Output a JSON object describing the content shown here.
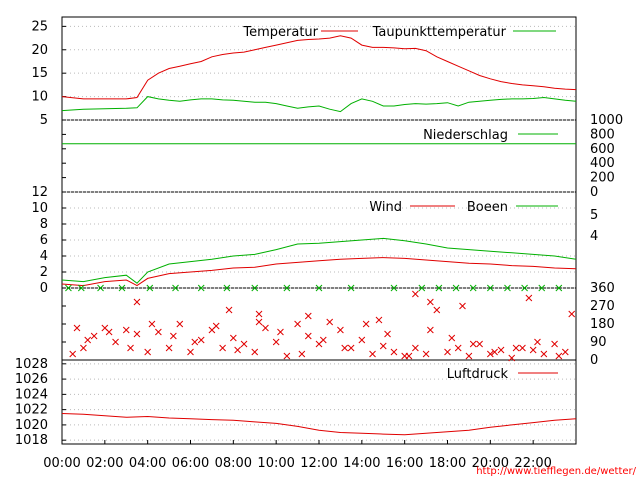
{
  "credit": "http://www.tiefflegen.de/wetter/",
  "x_ticks": [
    "00:00",
    "02:00",
    "04:00",
    "06:00",
    "08:00",
    "10:00",
    "12:00",
    "14:00",
    "16:00",
    "18:00",
    "20:00",
    "22:00"
  ],
  "colors": {
    "red": "#e00000",
    "green": "#00b000",
    "grid": "#bbbbbb"
  },
  "chart_data": [
    {
      "id": "temp",
      "type": "line",
      "ylim": [
        5,
        27
      ],
      "y_ticks": [
        5,
        10,
        15,
        20,
        25
      ],
      "grid": true,
      "series": [
        {
          "name": "Temperatur",
          "color": "#e00000",
          "x": [
            0,
            1,
            2,
            3,
            3.5,
            4,
            4.5,
            5,
            5.5,
            6,
            6.5,
            7,
            7.5,
            8,
            8.5,
            9,
            9.5,
            10,
            10.5,
            11,
            11.5,
            12,
            12.5,
            13,
            13.5,
            14,
            14.5,
            15,
            15.5,
            16,
            16.5,
            17,
            17.5,
            18,
            18.5,
            19,
            19.5,
            20,
            20.5,
            21,
            21.5,
            22,
            22.5,
            23,
            23.5,
            24
          ],
          "y": [
            10,
            9.5,
            9.5,
            9.5,
            9.8,
            13.5,
            15,
            16,
            16.5,
            17,
            17.5,
            18.5,
            19,
            19.3,
            19.5,
            20,
            20.5,
            21,
            21.5,
            22,
            22.2,
            22.3,
            22.5,
            23,
            22.5,
            21,
            20.5,
            20.5,
            20.4,
            20.2,
            20.3,
            19.8,
            18.5,
            17.5,
            16.5,
            15.5,
            14.5,
            13.8,
            13.2,
            12.8,
            12.5,
            12.3,
            12.1,
            11.8,
            11.6,
            11.5
          ]
        },
        {
          "name": "Taupunkttemperatur",
          "color": "#00b000",
          "x": [
            0,
            1,
            2,
            3,
            3.5,
            4,
            4.5,
            5,
            5.5,
            6,
            6.5,
            7,
            7.5,
            8,
            8.5,
            9,
            9.5,
            10,
            10.5,
            11,
            11.5,
            12,
            12.5,
            13,
            13.5,
            14,
            14.5,
            15,
            15.5,
            16,
            16.5,
            17,
            17.5,
            18,
            18.5,
            19,
            19.5,
            20,
            20.5,
            21,
            21.5,
            22,
            22.5,
            23,
            23.5,
            24
          ],
          "y": [
            7,
            7.3,
            7.4,
            7.5,
            7.6,
            10,
            9.5,
            9.2,
            9,
            9.3,
            9.5,
            9.5,
            9.3,
            9.2,
            9,
            8.8,
            8.8,
            8.5,
            8,
            7.5,
            7.8,
            8,
            7.3,
            6.8,
            8.5,
            9.5,
            9,
            8,
            8,
            8.3,
            8.5,
            8.4,
            8.5,
            8.7,
            8,
            8.8,
            9,
            9.2,
            9.4,
            9.5,
            9.5,
            9.6,
            9.8,
            9.5,
            9.2,
            9
          ]
        }
      ]
    },
    {
      "id": "rain",
      "type": "line",
      "ylim": [
        0,
        1000
      ],
      "y_ticks": [
        0,
        200,
        400,
        600,
        800,
        1000
      ],
      "series": [
        {
          "name": "Niederschlag",
          "color": "#00b000",
          "x": [
            0,
            24
          ],
          "y": [
            670,
            670
          ]
        }
      ]
    },
    {
      "id": "wind",
      "type": "line",
      "ylim": [
        0,
        12
      ],
      "y_ticks": [
        0,
        2,
        4,
        6,
        8,
        10,
        12
      ],
      "right_ticks": [
        "5",
        "4"
      ],
      "grid": true,
      "series": [
        {
          "name": "Wind",
          "color": "#e00000",
          "x": [
            0,
            1,
            2,
            3,
            3.5,
            4,
            5,
            6,
            7,
            8,
            9,
            10,
            11,
            12,
            13,
            14,
            15,
            16,
            17,
            18,
            19,
            20,
            21,
            22,
            23,
            24
          ],
          "y": [
            0.5,
            0.3,
            0.8,
            1,
            0.3,
            1.2,
            1.8,
            2,
            2.2,
            2.5,
            2.6,
            3,
            3.2,
            3.4,
            3.6,
            3.7,
            3.8,
            3.7,
            3.5,
            3.3,
            3.1,
            3,
            2.8,
            2.7,
            2.5,
            2.4
          ]
        },
        {
          "name": "Boeen",
          "color": "#00b000",
          "x": [
            0,
            1,
            2,
            3,
            3.5,
            4,
            5,
            6,
            7,
            8,
            9,
            10,
            11,
            12,
            13,
            14,
            15,
            16,
            17,
            18,
            19,
            20,
            21,
            22,
            23,
            24
          ],
          "y": [
            1,
            0.8,
            1.3,
            1.6,
            0.6,
            2,
            3,
            3.3,
            3.6,
            4,
            4.2,
            4.8,
            5.5,
            5.6,
            5.8,
            6,
            6.2,
            5.9,
            5.5,
            5,
            4.8,
            4.6,
            4.4,
            4.2,
            4,
            3.6
          ]
        }
      ]
    },
    {
      "id": "winddir",
      "type": "scatter",
      "ylim": [
        0,
        360
      ],
      "y_ticks": [
        0,
        90,
        180,
        270,
        360
      ],
      "marker": "x",
      "series": [
        {
          "name": "",
          "color": "#e00000",
          "x": [
            0.5,
            1,
            1.5,
            2,
            2.5,
            3,
            3.5,
            4,
            4.5,
            5,
            5.5,
            6,
            6.5,
            7,
            7.5,
            8,
            8.5,
            9,
            9.5,
            10,
            10.5,
            11,
            11.5,
            12,
            12.5,
            13,
            13.5,
            14,
            14.5,
            15,
            15.5,
            16,
            16.5,
            17,
            17.5,
            18,
            18.5,
            19,
            19.5,
            20,
            20.5,
            21,
            21.5,
            22,
            22.5,
            23,
            23.5,
            0.7,
            1.2,
            2.2,
            3.2,
            4.2,
            5.2,
            6.2,
            7.2,
            8.2,
            9.2,
            10.2,
            11.2,
            12.2,
            13.2,
            14.2,
            15.2,
            16.2,
            17.2,
            18.2,
            19.2,
            20.2,
            21.2,
            22.2,
            23.2,
            3.5,
            7.8,
            9.2,
            11.5,
            14.8,
            16.5,
            17.2,
            18.7,
            21.8,
            23.8
          ],
          "y": [
            30,
            60,
            120,
            160,
            90,
            150,
            130,
            40,
            140,
            60,
            180,
            40,
            100,
            150,
            60,
            110,
            80,
            40,
            160,
            90,
            20,
            180,
            120,
            80,
            190,
            150,
            60,
            100,
            30,
            70,
            40,
            20,
            60,
            30,
            250,
            40,
            60,
            20,
            80,
            30,
            50,
            10,
            60,
            50,
            30,
            80,
            40,
            160,
            100,
            140,
            60,
            180,
            120,
            90,
            170,
            50,
            190,
            140,
            30,
            100,
            60,
            180,
            130,
            20,
            150,
            110,
            80,
            40,
            60,
            90,
            20,
            290,
            250,
            230,
            220,
            200,
            330,
            290,
            270,
            310,
            230
          ]
        },
        {
          "name": "",
          "color": "#00b000",
          "x": [
            0.3,
            0.9,
            1.8,
            2.8,
            4.1,
            5.3,
            6.5,
            7.7,
            9.0,
            10.5,
            12.0,
            13.5,
            15.5,
            16.8,
            17.6,
            18.4,
            19.2,
            20.0,
            20.8,
            21.6,
            22.4,
            23.2
          ],
          "y": [
            360,
            360,
            360,
            360,
            360,
            360,
            360,
            360,
            360,
            360,
            360,
            360,
            360,
            360,
            360,
            360,
            360,
            360,
            360,
            360,
            360,
            360
          ]
        }
      ]
    },
    {
      "id": "press",
      "type": "line",
      "ylim": [
        1017.5,
        1028.5
      ],
      "y_ticks": [
        1018,
        1020,
        1022,
        1024,
        1026,
        1028
      ],
      "grid": true,
      "series": [
        {
          "name": "Luftdruck",
          "color": "#e00000",
          "x": [
            0,
            1,
            2,
            3,
            4,
            5,
            6,
            7,
            8,
            9,
            10,
            11,
            12,
            13,
            14,
            15,
            16,
            17,
            18,
            19,
            20,
            21,
            22,
            23,
            24
          ],
          "y": [
            1021.5,
            1021.4,
            1021.2,
            1021,
            1021.1,
            1020.9,
            1020.8,
            1020.7,
            1020.6,
            1020.4,
            1020.2,
            1019.8,
            1019.3,
            1019,
            1018.9,
            1018.8,
            1018.7,
            1018.9,
            1019.1,
            1019.3,
            1019.7,
            1020,
            1020.3,
            1020.6,
            1020.8
          ]
        }
      ]
    }
  ]
}
